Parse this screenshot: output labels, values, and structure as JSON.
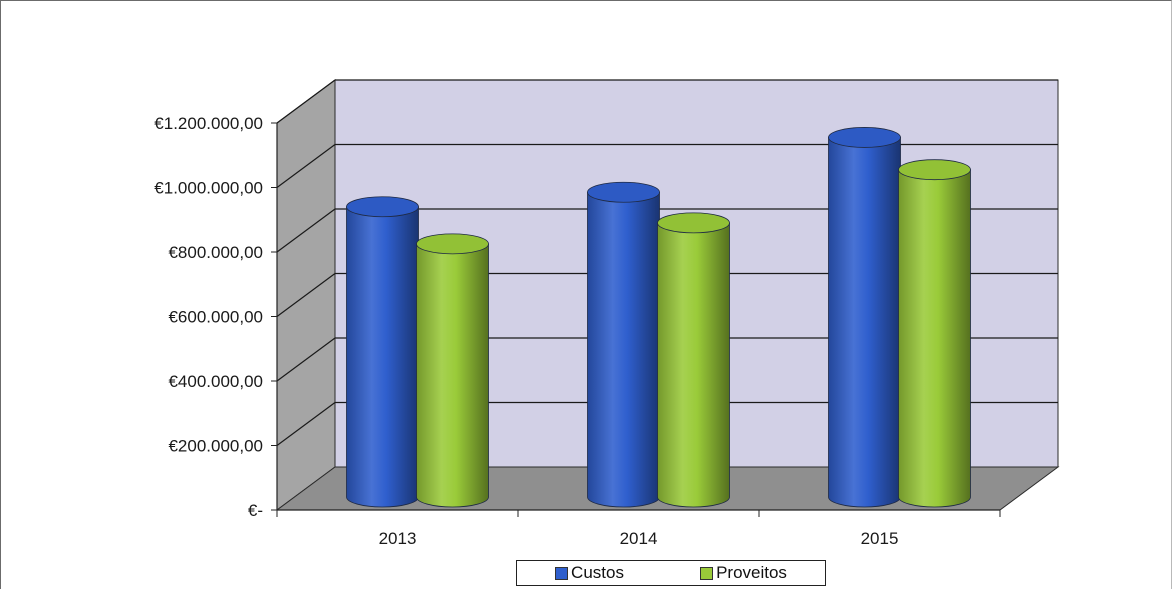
{
  "chart_data": {
    "type": "bar",
    "style": "3d-cylinder",
    "categories": [
      "2013",
      "2014",
      "2015"
    ],
    "series": [
      {
        "name": "Custos",
        "color": "#2f5fce",
        "values": [
          900000,
          945000,
          1115000
        ]
      },
      {
        "name": "Proveitos",
        "color": "#9acb39",
        "values": [
          785000,
          850000,
          1015000
        ]
      }
    ],
    "ylim": [
      0,
      1200000
    ],
    "yticks": [
      0,
      200000,
      400000,
      600000,
      800000,
      1000000,
      1200000
    ],
    "ytick_labels": [
      "€-",
      "€200.000,00",
      "€400.000,00",
      "€600.000,00",
      "€800.000,00",
      "€1.000.000,00",
      "€1.200.000,00"
    ],
    "grid": true,
    "legend_position": "bottom"
  }
}
